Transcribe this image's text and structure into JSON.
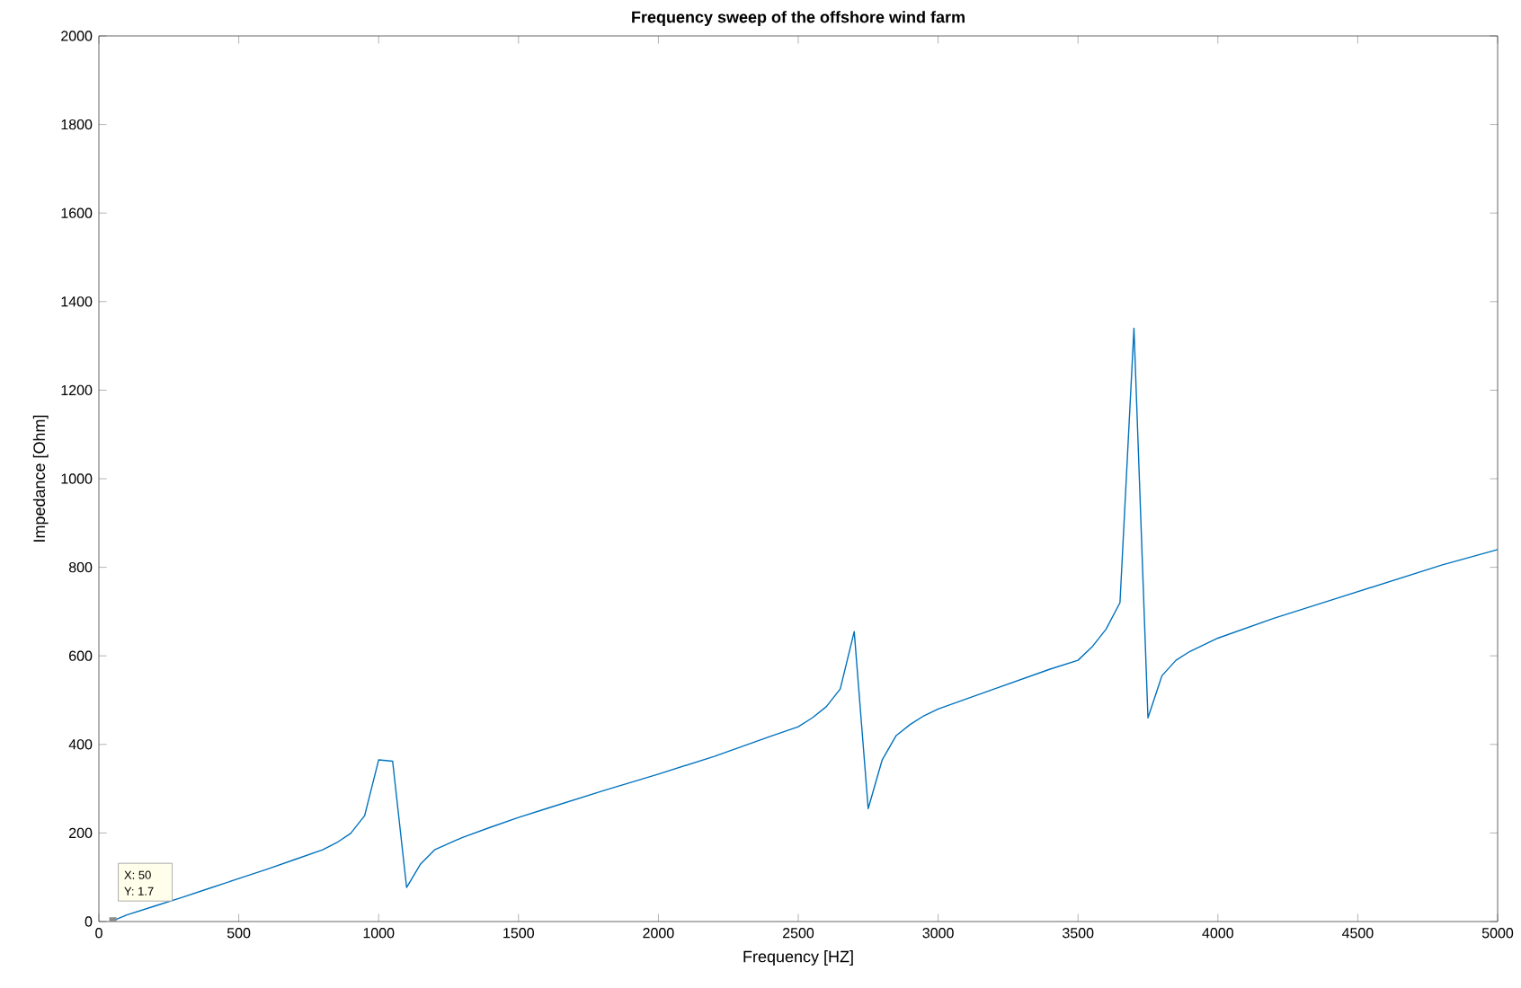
{
  "chart_data": {
    "type": "line",
    "title": "Frequency sweep of the offshore wind farm",
    "xlabel": "Frequency [HZ]",
    "ylabel": "Impedance [Ohm]",
    "x": [
      50,
      100,
      200,
      300,
      400,
      500,
      600,
      700,
      800,
      850,
      900,
      950,
      1000,
      1050,
      1100,
      1150,
      1200,
      1300,
      1400,
      1500,
      1600,
      1800,
      2000,
      2200,
      2400,
      2500,
      2550,
      2600,
      2650,
      2700,
      2750,
      2800,
      2850,
      2900,
      2950,
      3000,
      3200,
      3400,
      3500,
      3550,
      3600,
      3650,
      3700,
      3750,
      3800,
      3850,
      3900,
      4000,
      4200,
      4400,
      4600,
      4800,
      5000
    ],
    "series": [
      {
        "color": "#0072bd",
        "values": [
          1.7,
          15,
          35,
          55,
          76,
          97,
          118,
          140,
          162,
          178,
          199,
          239,
          365,
          362,
          77,
          130,
          162,
          190,
          213,
          235,
          255,
          295,
          333,
          373,
          418,
          440,
          460,
          485,
          525,
          655,
          255,
          365,
          420,
          445,
          465,
          480,
          525,
          570,
          590,
          620,
          660,
          720,
          1340,
          460,
          555,
          590,
          610,
          640,
          685,
          725,
          765,
          805,
          840
        ]
      }
    ],
    "xlim": [
      0,
      5000
    ],
    "ylim": [
      0,
      2000
    ],
    "xticks": [
      0,
      500,
      1000,
      1500,
      2000,
      2500,
      3000,
      3500,
      4000,
      4500,
      5000
    ],
    "yticks": [
      0,
      200,
      400,
      600,
      800,
      1000,
      1200,
      1400,
      1600,
      1800,
      2000
    ],
    "grid": false,
    "marker": "none",
    "line_style": "solid",
    "annotations": [
      "X: 50",
      "Y: 1.7"
    ]
  }
}
